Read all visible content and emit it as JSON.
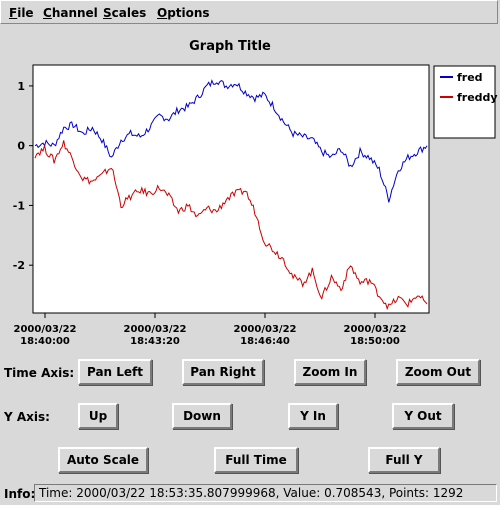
{
  "menu": {
    "file": {
      "u": "F",
      "rest": "ile"
    },
    "channel": {
      "u": "C",
      "rest": "hannel"
    },
    "scales": {
      "u": "S",
      "rest": "cales"
    },
    "options": {
      "u": "O",
      "rest": "ptions"
    }
  },
  "chart_data": {
    "type": "line",
    "title": "Graph Title",
    "xlabel": "",
    "ylabel": "",
    "ylim": [
      -2.8,
      1.35
    ],
    "yticks": [
      1,
      0,
      -1,
      -2
    ],
    "xticks": [
      {
        "line1": "2000/03/22",
        "line2": "18:40:00"
      },
      {
        "line1": "2000/03/22",
        "line2": "18:43:20"
      },
      {
        "line1": "2000/03/22",
        "line2": "18:46:40"
      },
      {
        "line1": "2000/03/22",
        "line2": "18:50:00"
      }
    ],
    "legend": {
      "placement": "right"
    },
    "series": [
      {
        "name": "fred",
        "color": "#0000cc",
        "values": [
          0.0,
          0.05,
          0.0,
          0.3,
          0.35,
          0.2,
          0.3,
          0.1,
          -0.2,
          0.1,
          0.2,
          0.15,
          0.3,
          0.5,
          0.45,
          0.6,
          0.65,
          0.8,
          1.0,
          1.1,
          1.0,
          1.05,
          0.9,
          0.8,
          0.85,
          0.65,
          0.4,
          0.2,
          0.15,
          0.1,
          -0.1,
          -0.2,
          -0.05,
          -0.35,
          -0.1,
          -0.2,
          -0.4,
          -0.9,
          -0.4,
          -0.2,
          -0.1,
          0.0
        ]
      },
      {
        "name": "freddy",
        "color": "#cc0000",
        "values": [
          -0.15,
          -0.05,
          -0.25,
          0.05,
          -0.25,
          -0.55,
          -0.6,
          -0.5,
          -0.35,
          -1.0,
          -0.85,
          -0.75,
          -0.8,
          -0.7,
          -0.85,
          -1.1,
          -1.0,
          -1.2,
          -1.05,
          -1.1,
          -0.9,
          -0.8,
          -0.75,
          -1.1,
          -1.6,
          -1.75,
          -1.9,
          -2.2,
          -2.3,
          -2.1,
          -2.55,
          -2.2,
          -2.4,
          -2.0,
          -2.3,
          -2.25,
          -2.5,
          -2.7,
          -2.55,
          -2.65,
          -2.5,
          -2.65
        ]
      }
    ]
  },
  "axes": {
    "time_label": "Time Axis:",
    "y_label": "Y Axis:"
  },
  "buttons": {
    "pan_left": "Pan Left",
    "pan_right": "Pan Right",
    "zoom_in": "Zoom In",
    "zoom_out": "Zoom Out",
    "up": "Up",
    "down": "Down",
    "y_in": "Y In",
    "y_out": "Y Out",
    "auto_scale": "Auto Scale",
    "full_time": "Full Time",
    "full_y": "Full Y"
  },
  "info": {
    "label": "Info:",
    "text": "Time: 2000/03/22 18:53:35.807999968,  Value: 0.708543, Points: 1292"
  }
}
